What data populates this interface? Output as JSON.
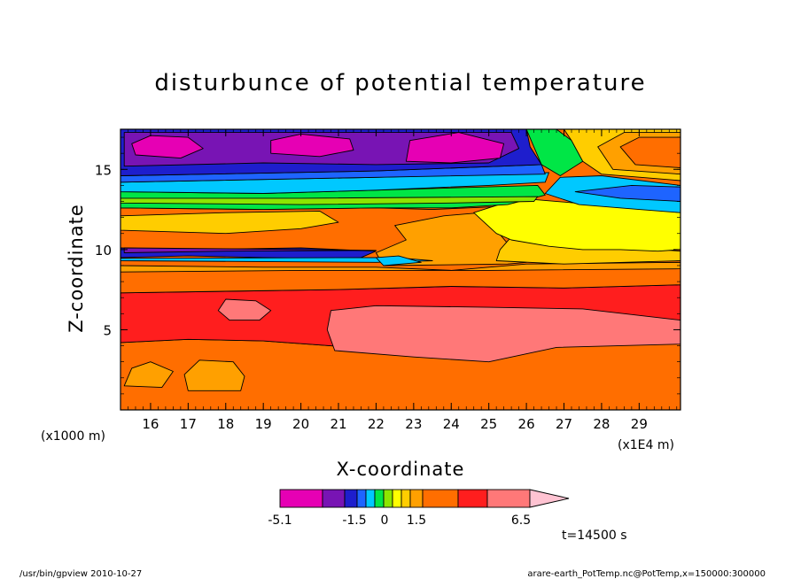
{
  "chart_data": {
    "type": "heatmap",
    "title": "disturbunce of potential temperature",
    "xlabel": "X-coordinate",
    "ylabel": "Z-coordinate",
    "x_units": "(x1E4 m)",
    "y_units": "(x1000 m)",
    "xlim": [
      15.2,
      30.1
    ],
    "ylim": [
      0,
      17.5
    ],
    "x_ticks": [
      16,
      17,
      18,
      19,
      20,
      21,
      22,
      23,
      24,
      25,
      26,
      27,
      28,
      29
    ],
    "y_ticks": [
      5,
      10,
      15
    ],
    "colorbar": {
      "labels": [
        "-5.1",
        "-1.5",
        "0",
        "1.5",
        "6.5"
      ],
      "label_values": [
        -5.1,
        -1.5,
        0,
        1.5,
        6.5
      ],
      "colors": [
        "#e600b4",
        "#7814b4",
        "#1e1ecd",
        "#1e64ff",
        "#00c8ff",
        "#00e646",
        "#8ce600",
        "#ffff00",
        "#ffcd00",
        "#ffa000",
        "#ff6e00",
        "#ff1e1e",
        "#ff7878",
        "#ffc3d2"
      ]
    },
    "time_label": "t=14500 s",
    "footer_left": "/usr/bin/gpview   2010-10-27",
    "footer_right": "arare-earth_PotTemp.nc@PotTemp,x=150000:300000",
    "regions": [
      {
        "color": "#ff6e00",
        "points": [
          [
            15.2,
            0
          ],
          [
            30.1,
            0
          ],
          [
            30.1,
            4.4
          ],
          [
            27.0,
            4.2
          ],
          [
            25.0,
            3.2
          ],
          [
            22.0,
            3.8
          ],
          [
            19.0,
            4.3
          ],
          [
            17.0,
            4.4
          ],
          [
            15.2,
            4.2
          ]
        ]
      },
      {
        "color": "#ffa000",
        "points": [
          [
            17.0,
            1.2
          ],
          [
            18.4,
            1.2
          ],
          [
            18.5,
            2.1
          ],
          [
            18.2,
            3.0
          ],
          [
            17.3,
            3.1
          ],
          [
            16.9,
            2.2
          ]
        ]
      },
      {
        "color": "#ffa000",
        "points": [
          [
            15.3,
            1.5
          ],
          [
            16.3,
            1.4
          ],
          [
            16.6,
            2.4
          ],
          [
            16.0,
            3.0
          ],
          [
            15.5,
            2.6
          ]
        ]
      },
      {
        "color": "#ff1e1e",
        "points": [
          [
            15.2,
            4.2
          ],
          [
            17.0,
            4.4
          ],
          [
            19.0,
            4.3
          ],
          [
            22.0,
            3.8
          ],
          [
            25.0,
            3.2
          ],
          [
            27.0,
            4.2
          ],
          [
            30.1,
            4.4
          ],
          [
            30.1,
            7.8
          ],
          [
            27.0,
            7.6
          ],
          [
            24.0,
            7.7
          ],
          [
            21.0,
            7.5
          ],
          [
            18.0,
            7.4
          ],
          [
            15.2,
            7.3
          ]
        ]
      },
      {
        "color": "#ff7878",
        "points": [
          [
            20.9,
            3.7
          ],
          [
            23.0,
            3.3
          ],
          [
            25.0,
            3.0
          ],
          [
            26.8,
            3.9
          ],
          [
            30.1,
            4.1
          ],
          [
            30.1,
            5.6
          ],
          [
            27.5,
            6.3
          ],
          [
            25.0,
            6.4
          ],
          [
            22.0,
            6.5
          ],
          [
            20.8,
            6.2
          ],
          [
            20.7,
            5.0
          ]
        ]
      },
      {
        "color": "#ff7878",
        "points": [
          [
            18.1,
            5.6
          ],
          [
            18.9,
            5.6
          ],
          [
            19.2,
            6.2
          ],
          [
            18.8,
            6.8
          ],
          [
            18.0,
            6.9
          ],
          [
            17.8,
            6.2
          ]
        ]
      },
      {
        "color": "#ff6e00",
        "points": [
          [
            15.2,
            7.3
          ],
          [
            18.0,
            7.4
          ],
          [
            21.0,
            7.5
          ],
          [
            24.0,
            7.7
          ],
          [
            27.0,
            7.6
          ],
          [
            30.1,
            7.8
          ],
          [
            30.1,
            9.2
          ],
          [
            26.0,
            9.1
          ],
          [
            22.0,
            8.9
          ],
          [
            19.0,
            8.9
          ],
          [
            15.2,
            9.0
          ]
        ]
      },
      {
        "color": "#ffa000",
        "points": [
          [
            15.2,
            8.6
          ],
          [
            20.0,
            8.7
          ],
          [
            25.0,
            8.7
          ],
          [
            30.1,
            8.8
          ],
          [
            30.1,
            9.2
          ],
          [
            15.2,
            9.1
          ]
        ]
      },
      {
        "color": "#ff6e00",
        "points": [
          [
            15.2,
            9.0
          ],
          [
            19.0,
            8.9
          ],
          [
            22.0,
            8.9
          ],
          [
            24.0,
            8.7
          ],
          [
            26.0,
            9.1
          ],
          [
            30.1,
            9.2
          ],
          [
            30.1,
            12.4
          ],
          [
            27.5,
            12.1
          ],
          [
            25.5,
            12.7
          ],
          [
            23.5,
            12.5
          ],
          [
            22.0,
            12.6
          ],
          [
            19.0,
            12.5
          ],
          [
            15.2,
            12.6
          ]
        ]
      },
      {
        "color": "#ffa000",
        "points": [
          [
            22.2,
            9.0
          ],
          [
            25.5,
            9.1
          ],
          [
            26.0,
            9.2
          ],
          [
            25.6,
            10.1
          ],
          [
            25.2,
            11.2
          ],
          [
            24.8,
            12.3
          ],
          [
            23.8,
            12.1
          ],
          [
            22.5,
            11.5
          ],
          [
            22.8,
            10.6
          ],
          [
            22.0,
            9.8
          ]
        ]
      },
      {
        "color": "#ffcd00",
        "points": [
          [
            25.2,
            9.3
          ],
          [
            27.0,
            9.1
          ],
          [
            30.1,
            9.3
          ],
          [
            30.1,
            9.9
          ],
          [
            28.5,
            10.2
          ],
          [
            26.5,
            10.7
          ],
          [
            25.6,
            10.8
          ],
          [
            25.3,
            10.0
          ]
        ]
      },
      {
        "color": "#ffff00",
        "points": [
          [
            24.6,
            12.3
          ],
          [
            25.2,
            11.0
          ],
          [
            25.6,
            10.6
          ],
          [
            26.6,
            10.2
          ],
          [
            27.5,
            10.0
          ],
          [
            28.5,
            10.0
          ],
          [
            29.5,
            9.9
          ],
          [
            30.1,
            10.0
          ],
          [
            30.1,
            12.3
          ],
          [
            29.0,
            12.8
          ],
          [
            27.3,
            12.9
          ],
          [
            25.8,
            13.2
          ]
        ]
      },
      {
        "color": "#ffcd00",
        "points": [
          [
            15.2,
            11.2
          ],
          [
            18.0,
            11.0
          ],
          [
            20.0,
            11.3
          ],
          [
            21.0,
            11.7
          ],
          [
            20.5,
            12.4
          ],
          [
            18.0,
            12.3
          ],
          [
            15.2,
            12.1
          ]
        ]
      },
      {
        "color": "#00e646",
        "points": [
          [
            15.2,
            12.6
          ],
          [
            19.0,
            12.5
          ],
          [
            22.0,
            12.6
          ],
          [
            24.0,
            12.6
          ],
          [
            25.5,
            12.8
          ],
          [
            26.5,
            13.4
          ],
          [
            26.3,
            14.0
          ],
          [
            22.0,
            13.7
          ],
          [
            19.0,
            13.5
          ],
          [
            15.2,
            13.6
          ]
        ]
      },
      {
        "color": "#8ce600",
        "points": [
          [
            15.2,
            12.9
          ],
          [
            20.0,
            12.8
          ],
          [
            24.0,
            12.9
          ],
          [
            26.2,
            13.0
          ],
          [
            26.3,
            13.3
          ],
          [
            20.0,
            13.2
          ],
          [
            15.2,
            13.2
          ]
        ]
      },
      {
        "color": "#00c8ff",
        "points": [
          [
            26.5,
            13.5
          ],
          [
            27.4,
            12.8
          ],
          [
            29.0,
            12.5
          ],
          [
            30.1,
            12.3
          ],
          [
            30.1,
            14.0
          ],
          [
            28.0,
            14.6
          ],
          [
            26.9,
            14.5
          ]
        ]
      },
      {
        "color": "#1e64ff",
        "points": [
          [
            27.3,
            13.6
          ],
          [
            28.5,
            13.2
          ],
          [
            30.1,
            13.0
          ],
          [
            30.1,
            13.9
          ],
          [
            28.8,
            14.0
          ]
        ]
      },
      {
        "color": "#00c8ff",
        "points": [
          [
            15.2,
            13.6
          ],
          [
            19.0,
            13.5
          ],
          [
            22.0,
            13.7
          ],
          [
            25.0,
            14.0
          ],
          [
            26.5,
            14.2
          ],
          [
            26.6,
            14.8
          ],
          [
            22.0,
            14.5
          ],
          [
            15.2,
            14.2
          ]
        ]
      },
      {
        "color": "#1e64ff",
        "points": [
          [
            15.2,
            14.2
          ],
          [
            22.0,
            14.5
          ],
          [
            26.5,
            14.7
          ],
          [
            26.4,
            15.3
          ],
          [
            22.0,
            14.9
          ],
          [
            15.2,
            14.6
          ]
        ]
      },
      {
        "color": "#00e646",
        "points": [
          [
            26.4,
            15.3
          ],
          [
            26.9,
            14.6
          ],
          [
            27.5,
            15.5
          ],
          [
            27.2,
            16.8
          ],
          [
            26.8,
            17.5
          ],
          [
            26.0,
            17.5
          ]
        ]
      },
      {
        "color": "#ffcd00",
        "points": [
          [
            27.2,
            16.8
          ],
          [
            27.5,
            15.5
          ],
          [
            28.0,
            14.7
          ],
          [
            30.1,
            14.3
          ],
          [
            30.1,
            17.5
          ],
          [
            27.0,
            17.5
          ]
        ]
      },
      {
        "color": "#ffa000",
        "points": [
          [
            27.9,
            16.4
          ],
          [
            28.3,
            15.0
          ],
          [
            30.1,
            14.7
          ],
          [
            30.1,
            17.3
          ],
          [
            28.6,
            17.3
          ]
        ]
      },
      {
        "color": "#ff6e00",
        "points": [
          [
            28.5,
            16.4
          ],
          [
            28.9,
            15.3
          ],
          [
            30.1,
            15.1
          ],
          [
            30.1,
            17.0
          ],
          [
            29.0,
            17.0
          ]
        ]
      },
      {
        "color": "#1e1ecd",
        "points": [
          [
            15.2,
            14.6
          ],
          [
            22.0,
            14.9
          ],
          [
            26.4,
            15.3
          ],
          [
            26.1,
            16.4
          ],
          [
            26.0,
            17.5
          ],
          [
            15.2,
            17.5
          ]
        ]
      },
      {
        "color": "#7814b4",
        "points": [
          [
            15.3,
            15.2
          ],
          [
            19.0,
            15.4
          ],
          [
            22.0,
            15.3
          ],
          [
            25.0,
            15.4
          ],
          [
            25.8,
            16.3
          ],
          [
            25.6,
            17.3
          ],
          [
            15.3,
            17.3
          ]
        ]
      },
      {
        "color": "#e600b4",
        "points": [
          [
            15.6,
            15.9
          ],
          [
            16.8,
            15.7
          ],
          [
            17.4,
            16.3
          ],
          [
            17.0,
            17.0
          ],
          [
            16.0,
            17.1
          ],
          [
            15.5,
            16.6
          ]
        ]
      },
      {
        "color": "#e600b4",
        "points": [
          [
            19.2,
            16.0
          ],
          [
            20.5,
            15.8
          ],
          [
            21.4,
            16.2
          ],
          [
            21.3,
            16.9
          ],
          [
            20.0,
            17.2
          ],
          [
            19.2,
            16.8
          ]
        ]
      },
      {
        "color": "#e600b4",
        "points": [
          [
            22.8,
            15.5
          ],
          [
            24.0,
            15.4
          ],
          [
            25.3,
            15.7
          ],
          [
            25.4,
            16.6
          ],
          [
            24.2,
            17.3
          ],
          [
            22.9,
            16.8
          ]
        ]
      },
      {
        "color": "#1e1ecd",
        "points": [
          [
            15.2,
            9.5
          ],
          [
            17.0,
            9.6
          ],
          [
            19.0,
            9.5
          ],
          [
            21.5,
            9.4
          ],
          [
            22.0,
            9.9
          ],
          [
            20.0,
            10.1
          ],
          [
            17.0,
            10.0
          ],
          [
            15.2,
            10.1
          ]
        ]
      },
      {
        "color": "#7814b4",
        "points": [
          [
            15.3,
            9.8
          ],
          [
            18.0,
            9.9
          ],
          [
            22.0,
            9.95
          ],
          [
            18.0,
            10.05
          ],
          [
            15.3,
            10.1
          ]
        ]
      },
      {
        "color": "#00c8ff",
        "points": [
          [
            15.2,
            9.3
          ],
          [
            22.0,
            9.2
          ],
          [
            23.5,
            9.3
          ],
          [
            22.5,
            9.5
          ],
          [
            15.2,
            9.45
          ]
        ]
      },
      {
        "color": "#00c8ff",
        "points": [
          [
            22.2,
            9.0
          ],
          [
            23.2,
            9.2
          ],
          [
            22.6,
            9.6
          ],
          [
            22.0,
            9.5
          ]
        ]
      }
    ]
  }
}
